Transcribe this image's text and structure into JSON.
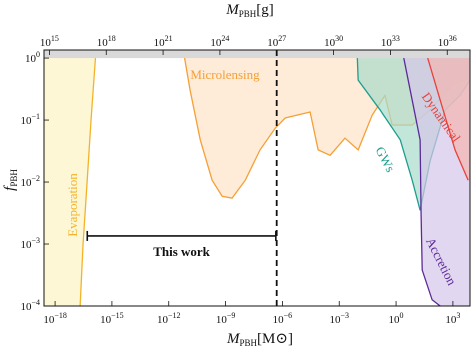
{
  "chart_data": {
    "type": "constraint-regions",
    "log_x": true,
    "log_y": true,
    "xlim": [
      2.6e-19,
      8000
    ],
    "ylim": [
      0.0001,
      1.35
    ],
    "x2lim": [
      517000000000000.0,
      1.59e+37
    ],
    "x_label": {
      "symbol": "M",
      "subscript": "PBH",
      "unit": "[M⊙]"
    },
    "x2_label": {
      "symbol": "M",
      "subscript": "PBH",
      "unit": "[g]"
    },
    "y_label": {
      "symbol": "f",
      "subscript": "PBH"
    },
    "xticks": [
      {
        "value": 1e-18,
        "label": "10",
        "exponent": "−18"
      },
      {
        "value": 1e-15,
        "label": "10",
        "exponent": "−15"
      },
      {
        "value": 1e-12,
        "label": "10",
        "exponent": "−12"
      },
      {
        "value": 1e-09,
        "label": "10",
        "exponent": "−9"
      },
      {
        "value": 1e-06,
        "label": "10",
        "exponent": "−6"
      },
      {
        "value": 0.001,
        "label": "10",
        "exponent": "−3"
      },
      {
        "value": 1,
        "label": "10",
        "exponent": "0"
      },
      {
        "value": 1000,
        "label": "10",
        "exponent": "3"
      }
    ],
    "x2ticks": [
      {
        "value": 1000000000000000.0,
        "label": "10",
        "exponent": "15"
      },
      {
        "value": 1e+18,
        "label": "10",
        "exponent": "18"
      },
      {
        "value": 1e+21,
        "label": "10",
        "exponent": "21"
      },
      {
        "value": 1e+24,
        "label": "10",
        "exponent": "24"
      },
      {
        "value": 1e+27,
        "label": "10",
        "exponent": "27"
      },
      {
        "value": 1e+30,
        "label": "10",
        "exponent": "30"
      },
      {
        "value": 1e+33,
        "label": "10",
        "exponent": "33"
      },
      {
        "value": 1e+36,
        "label": "10",
        "exponent": "36"
      }
    ],
    "yticks": [
      {
        "value": 1,
        "label": "10",
        "exponent": "0"
      },
      {
        "value": 0.1,
        "label": "10",
        "exponent": "−1"
      },
      {
        "value": 0.01,
        "label": "10",
        "exponent": "−2"
      },
      {
        "value": 0.001,
        "label": "10",
        "exponent": "−3"
      },
      {
        "value": 0.0001,
        "label": "10",
        "exponent": "−4"
      }
    ],
    "series": [
      {
        "name": "Microlensing",
        "color": "#f5a037",
        "fill_color": "#fde3c8",
        "fill": "above",
        "x": [
          5.8e-12,
          1.35e-11,
          4.6e-11,
          1.95e-10,
          6.6e-10,
          2.2e-09,
          1.1e-08,
          6.6e-08,
          4.2e-07,
          1.4e-06,
          2.9e-05,
          7.7e-05,
          0.00033,
          0.002,
          0.01,
          0.055,
          0.26,
          0.62,
          7,
          63,
          910,
          6400
        ],
        "values": [
          1.35,
          0.3,
          0.048,
          0.0107,
          0.0059,
          0.0055,
          0.0107,
          0.033,
          0.074,
          0.108,
          0.135,
          0.033,
          0.027,
          0.051,
          0.033,
          0.12,
          0.25,
          0.083,
          0.083,
          0.145,
          0.37,
          0.47
        ]
      },
      {
        "name": "Evaporation",
        "color": "#f2b32a",
        "fill_color": "#fdf3c4",
        "fill": "left",
        "x": [
          2.1e-17,
          3e-17,
          4.9e-17,
          7.9e-17,
          1.45e-16
        ],
        "values": [
          0.0001,
          0.001,
          0.01,
          0.1,
          1.35
        ]
      },
      {
        "name": "GWs",
        "color": "#1e9e8e",
        "fill_color": "#a9dccb",
        "fill": "above",
        "x": [
          0.0087,
          0.01,
          0.145,
          1.66,
          7.1,
          18.6,
          63,
          390,
          2400,
          8000
        ],
        "values": [
          1.35,
          0.44,
          0.145,
          0.048,
          0.0107,
          0.0035,
          0.022,
          0.145,
          0.25,
          0.44
        ]
      },
      {
        "name": "Accretion",
        "color": "#5b2a9a",
        "fill_color": "#d6c6ea",
        "fill": "right",
        "x": [
          2.1,
          7.1,
          18.6,
          21,
          24,
          80,
          213
        ],
        "values": [
          1.35,
          0.21,
          0.048,
          0.0029,
          0.00038,
          0.000126,
          0.0001
        ]
      },
      {
        "name": "Dynamical",
        "color": "#e8423a",
        "fill_color": "#f4b6b0",
        "fill": "above",
        "x": [
          35,
          213,
          1300,
          6400
        ],
        "values": [
          1.35,
          0.21,
          0.033,
          0.0107
        ]
      }
    ],
    "vline": 5e-07,
    "this_work": {
      "label": "This work",
      "x": [
        5e-17,
        4.5e-07
      ],
      "y": 0.00135
    }
  }
}
